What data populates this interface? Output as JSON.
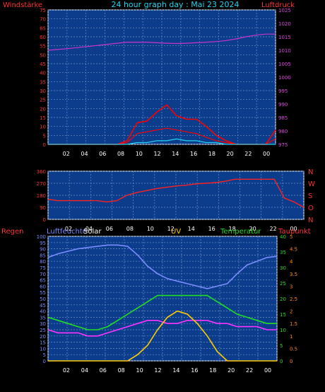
{
  "title": "24 hour graph day : Mai 23 2024",
  "colors": {
    "bg": "#000000",
    "plot": "#0b3d8c",
    "grid": "#6f8fc6",
    "axis": "#ffffff",
    "wind": "#ff0000",
    "gust": "#ff0000",
    "avg": "#22d3ee",
    "baro": "#cc33cc",
    "dir": "#ff2020",
    "humid": "#7b8cff",
    "solar": "#ffff00",
    "uv": "#ffcc00",
    "temp": "#22dd22",
    "dew": "#ff33ff",
    "rain": "#ff8800"
  },
  "chart_data": [
    {
      "type": "line",
      "name": "wind-pressure",
      "left_label": "Windstärke",
      "right_label": "Luftdruck",
      "x_ticks": [
        "02",
        "04",
        "06",
        "08",
        "10",
        "12",
        "14",
        "16",
        "18",
        "20",
        "22",
        "00"
      ],
      "y_left": {
        "min": 0,
        "max": 75,
        "step": 5
      },
      "y_right": {
        "min": 975,
        "max": 1025,
        "step": 5
      },
      "series": [
        {
          "axis": "right",
          "values": [
            1010,
            1010.3,
            1010.6,
            1011,
            1011.4,
            1011.8,
            1012.2,
            1012.6,
            1013,
            1013,
            1013,
            1012.8,
            1012.6,
            1012.5,
            1012.6,
            1012.8,
            1013,
            1013.2,
            1013.6,
            1014.2,
            1015,
            1015.6,
            1016,
            1016
          ]
        },
        {
          "axis": "left",
          "kind": "gust",
          "values": [
            0,
            0,
            0,
            0,
            0,
            0,
            0,
            0,
            2,
            12,
            13,
            18,
            22,
            16,
            14,
            14,
            10,
            5,
            2,
            0,
            0,
            0,
            0,
            8
          ]
        },
        {
          "axis": "left",
          "kind": "wind",
          "values": [
            0,
            0,
            0,
            0,
            0,
            0,
            0,
            0,
            1,
            6,
            7,
            8,
            9,
            8,
            7,
            6,
            4,
            2,
            1,
            0,
            0,
            0,
            0,
            3
          ]
        },
        {
          "axis": "left",
          "kind": "avg",
          "values": [
            0,
            0,
            0,
            0,
            0,
            0,
            0,
            0,
            0,
            1,
            1,
            2,
            2,
            3,
            2,
            2,
            1,
            1,
            0,
            0,
            0,
            0,
            0,
            0
          ]
        }
      ]
    },
    {
      "type": "line",
      "name": "wind-direction",
      "x_ticks": [
        "02",
        "04",
        "06",
        "08",
        "10",
        "12",
        "14",
        "16",
        "18",
        "20",
        "22",
        "00"
      ],
      "y_left": {
        "min": 0,
        "max": 360,
        "ticks": [
          0,
          90,
          180,
          270,
          360
        ]
      },
      "right_labels": [
        "N",
        "W",
        "S",
        "O",
        "N"
      ],
      "series": [
        {
          "values": [
            150,
            140,
            140,
            140,
            140,
            140,
            130,
            140,
            180,
            200,
            215,
            230,
            240,
            250,
            255,
            265,
            270,
            275,
            285,
            300,
            300,
            300,
            300,
            300,
            160,
            130,
            90
          ]
        }
      ]
    },
    {
      "type": "line",
      "name": "climate",
      "labels": {
        "rain": "Regen",
        "humid": "Luftfeuchte",
        "solar": "Solar",
        "uv": "UV",
        "temp": "Temperatur",
        "dew": "Taupunkt"
      },
      "x_ticks": [
        "02",
        "04",
        "06",
        "08",
        "10",
        "12",
        "14",
        "16",
        "18",
        "20",
        "22",
        "00"
      ],
      "y_left": {
        "min": 0,
        "max": 100,
        "step": 5
      },
      "y_rain": {
        "min": 0,
        "max": 40,
        "step": 5
      },
      "y_temp": {
        "min": 0,
        "max": 40,
        "step": 5
      },
      "y_dew": {
        "min": 0,
        "max": 5,
        "step": 0.5
      },
      "series": [
        {
          "axis": "left",
          "kind": "humid",
          "values": [
            83,
            86,
            88,
            90,
            91,
            92,
            93,
            93,
            92,
            85,
            76,
            70,
            66,
            64,
            62,
            60,
            58,
            60,
            62,
            70,
            77,
            80,
            83,
            84
          ]
        },
        {
          "axis": "temp",
          "kind": "temp",
          "values": [
            14,
            13,
            12,
            11,
            10,
            10,
            11,
            13,
            15,
            17,
            19,
            21,
            21,
            21,
            21,
            21,
            21,
            19,
            17,
            15,
            14,
            13,
            12,
            12
          ]
        },
        {
          "axis": "temp",
          "kind": "dew",
          "values": [
            10,
            9,
            9,
            9,
            8,
            8,
            9,
            10,
            11,
            12,
            13,
            13,
            12,
            12,
            13,
            13,
            13,
            12,
            12,
            11,
            11,
            11,
            10,
            10
          ]
        },
        {
          "axis": "temp",
          "kind": "uv",
          "values": [
            0,
            0,
            0,
            0,
            0,
            0,
            0,
            0,
            0,
            2,
            5,
            10,
            14,
            16,
            15,
            12,
            8,
            3,
            0,
            0,
            0,
            0,
            0,
            0
          ]
        }
      ]
    }
  ]
}
